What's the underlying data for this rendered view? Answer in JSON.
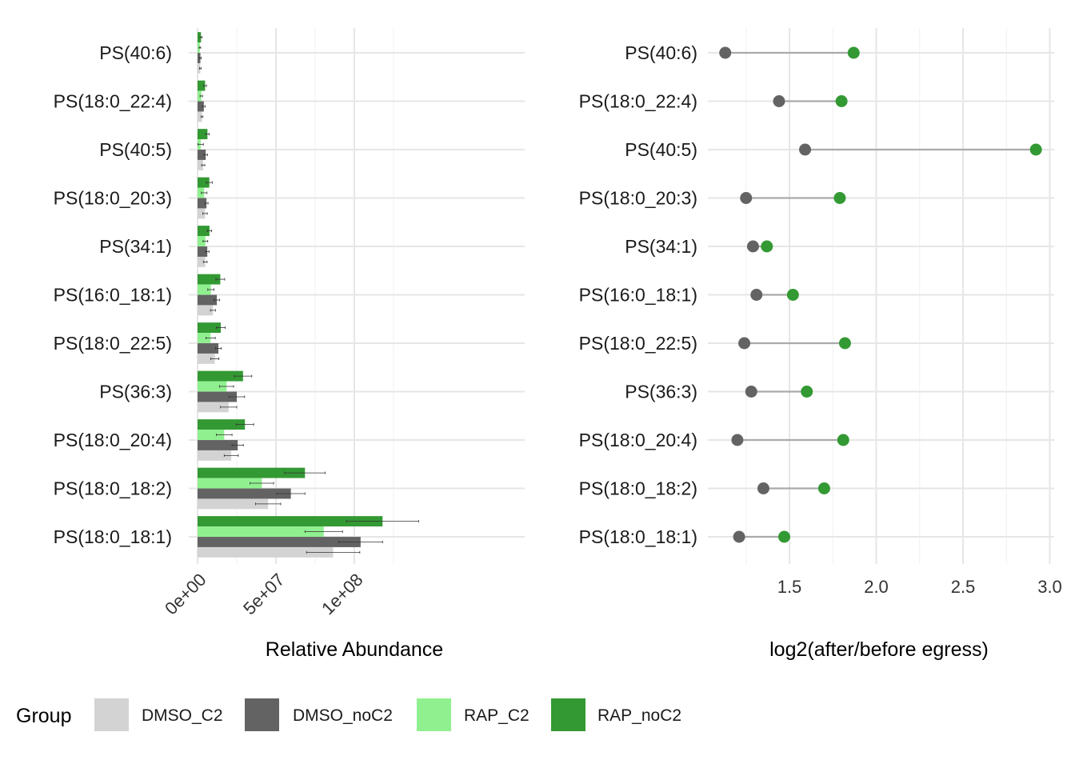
{
  "chart_data": [
    {
      "type": "bar",
      "orientation": "horizontal",
      "xlabel": "Relative Abundance",
      "ylabel": "",
      "xlim": [
        0,
        148000000
      ],
      "x_ticks": [
        0,
        50000000,
        100000000
      ],
      "x_tick_labels": [
        "0e+00",
        "5e+07",
        "1e+08"
      ],
      "grid": true,
      "categories": [
        "PS(40:6)",
        "PS(18:0_22:4)",
        "PS(40:5)",
        "PS(18:0_20:3)",
        "PS(34:1)",
        "PS(16:0_18:1)",
        "PS(18:0_22:5)",
        "PS(36:3)",
        "PS(18:0_20:4)",
        "PS(18:0_18:2)",
        "PS(18:0_18:1)"
      ],
      "series": [
        {
          "name": "RAP_noC2",
          "color": "#339933",
          "values": [
            2200000,
            4800000,
            6300000,
            7500000,
            7600000,
            14500000,
            14800000,
            29000000,
            30200000,
            68500000,
            118000000
          ],
          "errors": [
            600000,
            900000,
            1100000,
            1900000,
            1400000,
            2800000,
            2800000,
            5600000,
            5600000,
            13000000,
            23000000
          ]
        },
        {
          "name": "RAP_C2",
          "color": "#90f090",
          "values": [
            1500000,
            2400000,
            2000000,
            4200000,
            5000000,
            8500000,
            8300000,
            18500000,
            17000000,
            41000000,
            80500000
          ],
          "errors": [
            500000,
            800000,
            1700000,
            1800000,
            1500000,
            2000000,
            3000000,
            4500000,
            5000000,
            7500000,
            12000000
          ]
        },
        {
          "name": "DMSO_noC2",
          "color": "#636363",
          "values": [
            1800000,
            4000000,
            5200000,
            5700000,
            6200000,
            12300000,
            13300000,
            25000000,
            25600000,
            59500000,
            104000000
          ],
          "errors": [
            500000,
            800000,
            1100000,
            1000000,
            1100000,
            1800000,
            1800000,
            5000000,
            3600000,
            9000000,
            14000000
          ]
        },
        {
          "name": "DMSO_C2",
          "color": "#d3d3d3",
          "values": [
            1700000,
            2800000,
            3600000,
            4800000,
            4900000,
            9800000,
            11000000,
            19800000,
            21500000,
            45000000,
            86500000
          ],
          "errors": [
            500000,
            600000,
            1000000,
            1400000,
            1200000,
            1600000,
            2600000,
            5200000,
            4500000,
            8000000,
            17000000
          ]
        }
      ]
    },
    {
      "type": "scatter",
      "subtype": "dumbbell",
      "xlabel": "log2(after/before egress)",
      "ylabel": "",
      "xlim": [
        1.05,
        3.0
      ],
      "x_ticks": [
        1.5,
        2.0,
        2.5,
        3.0
      ],
      "x_tick_labels": [
        "1.5",
        "2.0",
        "2.5",
        "3.0"
      ],
      "grid": true,
      "categories": [
        "PS(40:6)",
        "PS(18:0_22:4)",
        "PS(40:5)",
        "PS(18:0_20:3)",
        "PS(34:1)",
        "PS(16:0_18:1)",
        "PS(18:0_22:5)",
        "PS(36:3)",
        "PS(18:0_20:4)",
        "PS(18:0_18:2)",
        "PS(18:0_18:1)"
      ],
      "series": [
        {
          "role": "start",
          "color": "#636363",
          "values": [
            1.13,
            1.44,
            1.59,
            1.25,
            1.29,
            1.31,
            1.24,
            1.28,
            1.2,
            1.35,
            1.21
          ]
        },
        {
          "role": "end",
          "color": "#339933",
          "values": [
            1.87,
            1.8,
            2.92,
            1.79,
            1.37,
            1.52,
            1.82,
            1.6,
            1.81,
            1.7,
            1.47
          ]
        }
      ],
      "segment_color": "#aaaaaa"
    }
  ],
  "legend": {
    "title": "Group",
    "position": "bottom",
    "items": [
      {
        "label": "DMSO_C2",
        "color": "#d3d3d3"
      },
      {
        "label": "DMSO_noC2",
        "color": "#636363"
      },
      {
        "label": "RAP_C2",
        "color": "#90f090"
      },
      {
        "label": "RAP_noC2",
        "color": "#339933"
      }
    ]
  }
}
